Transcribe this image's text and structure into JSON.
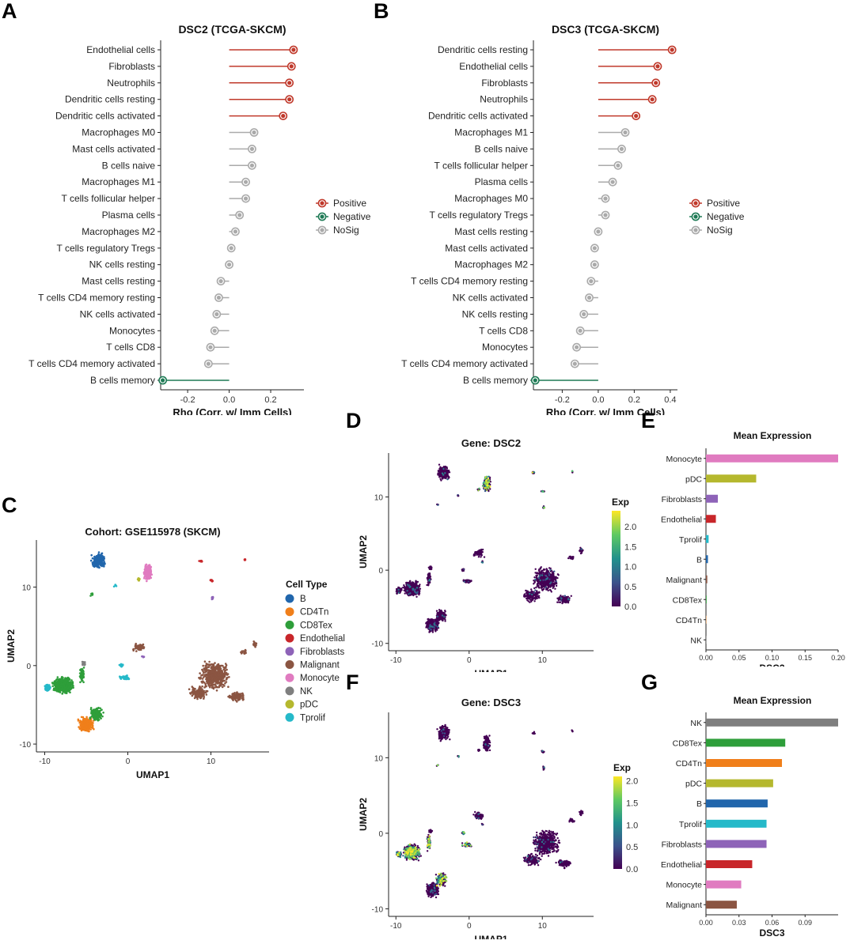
{
  "panel_letters": {
    "a": "A",
    "b": "B",
    "c": "C",
    "d": "D",
    "e": "E",
    "f": "F",
    "g": "G"
  },
  "colors": {
    "positive": "#c0392b",
    "negative": "#1e7a55",
    "nosig": "#aaaaaa",
    "viridis": [
      "#440154",
      "#3b528b",
      "#21918c",
      "#5ec962",
      "#fde725"
    ]
  },
  "chart_data": [
    {
      "id": "A",
      "type": "lollipop",
      "title": "DSC2 (TCGA-SKCM)",
      "xlabel": "Rho (Corr. w/ Imm Cells)",
      "xlim": [
        -0.33,
        0.36
      ],
      "xticks": [
        -0.2,
        0.0,
        0.2
      ],
      "xtick_labels": [
        "-0.2",
        "0.0",
        "0.2"
      ],
      "legend": [
        "Positive",
        "Negative",
        "NoSig"
      ],
      "categories": [
        "Endothelial cells",
        "Fibroblasts",
        "Neutrophils",
        "Dendritic cells resting",
        "Dendritic cells activated",
        "Macrophages M0",
        "Mast cells activated",
        "B cells naive",
        "Macrophages M1",
        "T cells follicular helper",
        "Plasma cells",
        "Macrophages M2",
        "T cells regulatory  Tregs",
        "NK cells resting",
        "Mast cells resting",
        "T cells CD4 memory resting",
        "NK cells activated",
        "Monocytes",
        "T cells CD8",
        "T cells CD4 memory activated",
        "B cells memory"
      ],
      "values": [
        0.31,
        0.3,
        0.29,
        0.29,
        0.26,
        0.12,
        0.11,
        0.11,
        0.08,
        0.08,
        0.05,
        0.03,
        0.01,
        0.0,
        -0.04,
        -0.05,
        -0.06,
        -0.07,
        -0.09,
        -0.1,
        -0.32
      ],
      "groups": [
        "Positive",
        "Positive",
        "Positive",
        "Positive",
        "Positive",
        "NoSig",
        "NoSig",
        "NoSig",
        "NoSig",
        "NoSig",
        "NoSig",
        "NoSig",
        "NoSig",
        "NoSig",
        "NoSig",
        "NoSig",
        "NoSig",
        "NoSig",
        "NoSig",
        "NoSig",
        "Negative"
      ]
    },
    {
      "id": "B",
      "type": "lollipop",
      "title": "DSC3 (TCGA-SKCM)",
      "xlabel": "Rho (Corr. w/ Imm Cells)",
      "xlim": [
        -0.36,
        0.44
      ],
      "xticks": [
        -0.2,
        0.0,
        0.2,
        0.4
      ],
      "xtick_labels": [
        "-0.2",
        "0.0",
        "0.2",
        "0.4"
      ],
      "legend": [
        "Positive",
        "Negative",
        "NoSig"
      ],
      "categories": [
        "Dendritic cells resting",
        "Endothelial cells",
        "Fibroblasts",
        "Neutrophils",
        "Dendritic cells activated",
        "Macrophages M1",
        "B cells naive",
        "T cells follicular helper",
        "Plasma cells",
        "Macrophages M0",
        "T cells regulatory  Tregs",
        "Mast cells resting",
        "Mast cells activated",
        "Macrophages M2",
        "T cells CD4 memory resting",
        "NK cells activated",
        "NK cells resting",
        "T cells CD8",
        "Monocytes",
        "T cells CD4 memory activated",
        "B cells memory"
      ],
      "values": [
        0.41,
        0.33,
        0.32,
        0.3,
        0.21,
        0.15,
        0.13,
        0.11,
        0.08,
        0.04,
        0.04,
        0.0,
        -0.02,
        -0.02,
        -0.04,
        -0.05,
        -0.08,
        -0.1,
        -0.12,
        -0.13,
        -0.35
      ],
      "groups": [
        "Positive",
        "Positive",
        "Positive",
        "Positive",
        "Positive",
        "NoSig",
        "NoSig",
        "NoSig",
        "NoSig",
        "NoSig",
        "NoSig",
        "NoSig",
        "NoSig",
        "NoSig",
        "NoSig",
        "NoSig",
        "NoSig",
        "NoSig",
        "NoSig",
        "NoSig",
        "Negative"
      ]
    },
    {
      "id": "C",
      "type": "scatter",
      "title": "Cohort: GSE115978 (SKCM)",
      "xlabel": "UMAP1",
      "ylabel": "UMAP2",
      "xlim": [
        -11,
        17
      ],
      "ylim": [
        -11,
        16
      ],
      "xticks": [
        -10,
        0,
        10
      ],
      "yticks": [
        -10,
        0,
        10
      ],
      "legend_title": "Cell Type",
      "cell_types": [
        "B",
        "CD4Tn",
        "CD8Tex",
        "Endothelial",
        "Fibroblasts",
        "Malignant",
        "Monocyte",
        "NK",
        "pDC",
        "Tprolif"
      ],
      "cell_colors": [
        "#2166ac",
        "#f07f1a",
        "#2e9e3a",
        "#c8262a",
        "#8e63b8",
        "#8b5542",
        "#e07bc0",
        "#7f7f7f",
        "#b5b82e",
        "#25b9c9"
      ]
    },
    {
      "id": "D",
      "type": "scatter",
      "title": "Gene: DSC2",
      "xlabel": "UMAP1",
      "ylabel": "UMAP2",
      "xlim": [
        -11,
        17
      ],
      "ylim": [
        -11,
        16
      ],
      "xticks": [
        -10,
        0,
        10
      ],
      "yticks": [
        -10,
        0,
        10
      ],
      "colorbar_title": "Exp",
      "colorbar_max": 2.4,
      "colorbar_ticks": [
        0.0,
        0.5,
        1.0,
        1.5,
        2.0
      ],
      "colorbar_tick_labels": [
        "0.0",
        "0.5",
        "1.0",
        "1.5",
        "2.0"
      ]
    },
    {
      "id": "E",
      "type": "bar",
      "orientation": "horizontal",
      "title": "Mean Expression",
      "xlabel": "DSC2",
      "xlim": [
        0,
        0.2
      ],
      "xticks": [
        0.0,
        0.05,
        0.1,
        0.15,
        0.2
      ],
      "xtick_labels": [
        "0.00",
        "0.05",
        "0.10",
        "0.15",
        "0.20"
      ],
      "categories": [
        "Monocyte",
        "pDC",
        "Fibroblasts",
        "Endothelial",
        "Tprolif",
        "B",
        "Malignant",
        "CD8Tex",
        "CD4Tn",
        "NK"
      ],
      "values": [
        0.2,
        0.076,
        0.018,
        0.015,
        0.004,
        0.003,
        0.002,
        0.001,
        0.0005,
        0.0003
      ],
      "colors": [
        "#e07bc0",
        "#b5b82e",
        "#8e63b8",
        "#c8262a",
        "#25b9c9",
        "#2166ac",
        "#8b5542",
        "#2e9e3a",
        "#f07f1a",
        "#7f7f7f"
      ]
    },
    {
      "id": "F",
      "type": "scatter",
      "title": "Gene: DSC3",
      "xlabel": "UMAP1",
      "ylabel": "UMAP2",
      "xlim": [
        -11,
        17
      ],
      "ylim": [
        -11,
        16
      ],
      "xticks": [
        -10,
        0,
        10
      ],
      "yticks": [
        -10,
        0,
        10
      ],
      "colorbar_title": "Exp",
      "colorbar_max": 2.1,
      "colorbar_ticks": [
        0.0,
        0.5,
        1.0,
        1.5,
        2.0
      ],
      "colorbar_tick_labels": [
        "0.0",
        "0.5",
        "1.0",
        "1.5",
        "2.0"
      ]
    },
    {
      "id": "G",
      "type": "bar",
      "orientation": "horizontal",
      "title": "Mean Expression",
      "xlabel": "DSC3",
      "xlim": [
        0,
        0.12
      ],
      "xticks": [
        0.0,
        0.03,
        0.06,
        0.09
      ],
      "xtick_labels": [
        "0.00",
        "0.03",
        "0.06",
        "0.09"
      ],
      "categories": [
        "NK",
        "CD8Tex",
        "CD4Tn",
        "pDC",
        "B",
        "Tprolif",
        "Fibroblasts",
        "Endothelial",
        "Monocyte",
        "Malignant"
      ],
      "values": [
        0.12,
        0.072,
        0.069,
        0.061,
        0.056,
        0.055,
        0.055,
        0.042,
        0.032,
        0.028
      ],
      "colors": [
        "#7f7f7f",
        "#2e9e3a",
        "#f07f1a",
        "#b5b82e",
        "#2166ac",
        "#25b9c9",
        "#8e63b8",
        "#c8262a",
        "#e07bc0",
        "#8b5542"
      ]
    }
  ]
}
